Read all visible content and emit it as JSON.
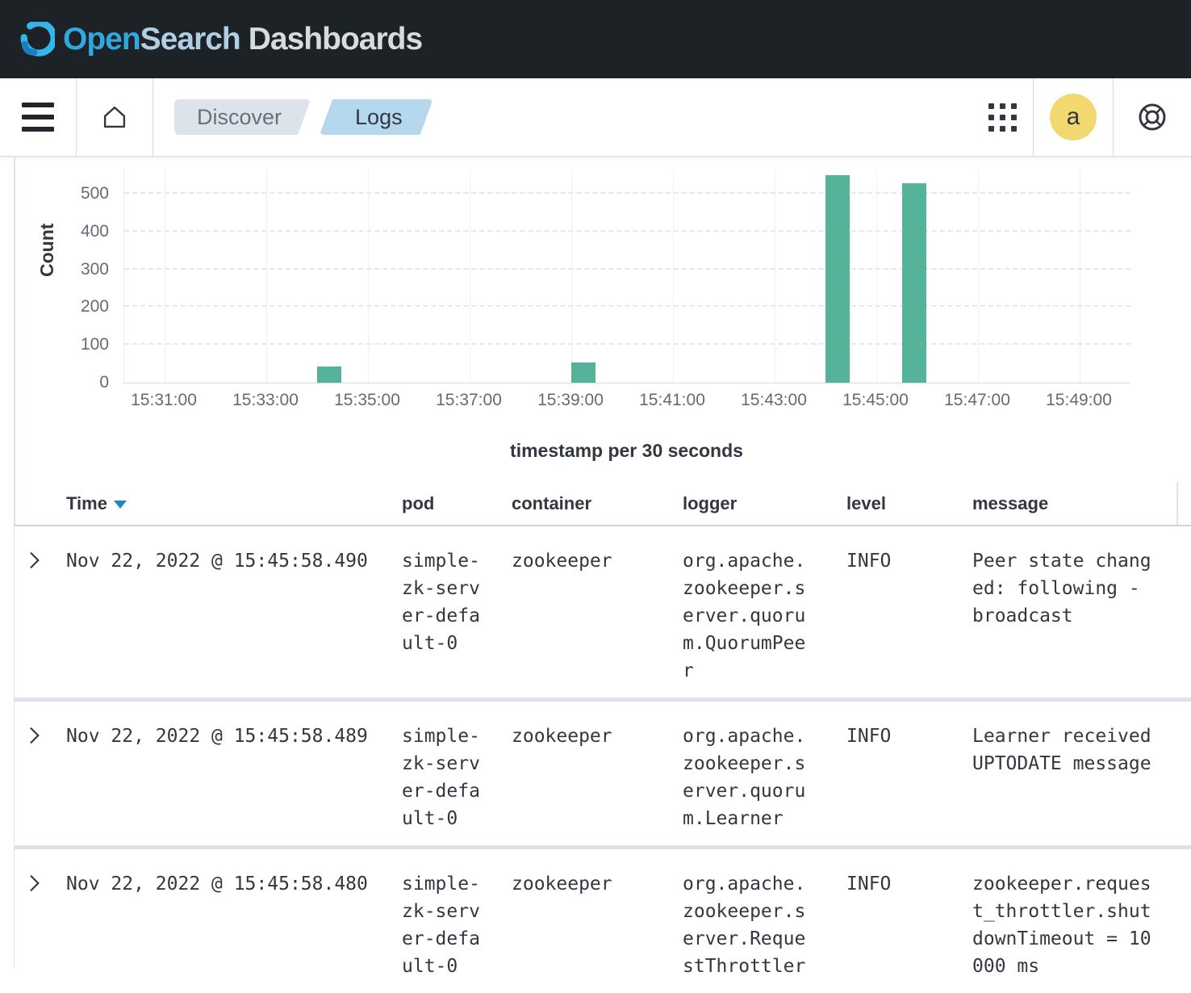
{
  "banner": {
    "logo_open": "Open",
    "logo_search": "Search",
    "logo_dashboards": "Dashboards"
  },
  "nav": {
    "breadcrumbs": [
      {
        "label": "Discover",
        "current": false
      },
      {
        "label": "Logs",
        "current": true
      }
    ],
    "avatar_initial": "a",
    "icons": {
      "menu": "menu-icon (hamburger ☰)",
      "home": "home-icon (house outline)",
      "apps": "apps-icon (3x3 dot grid)",
      "help": "help-icon (life ring)"
    }
  },
  "chart_data": {
    "type": "bar",
    "title": "",
    "xlabel": "timestamp per 30 seconds",
    "ylabel": "Count",
    "x_ticks": [
      "15:31:00",
      "15:33:00",
      "15:35:00",
      "15:37:00",
      "15:39:00",
      "15:41:00",
      "15:43:00",
      "15:45:00",
      "15:47:00",
      "15:49:00"
    ],
    "y_ticks": [
      0,
      100,
      200,
      300,
      400,
      500
    ],
    "ylim": [
      0,
      564
    ],
    "bucket_seconds": 30,
    "bars": [
      {
        "x": "15:34:00",
        "value": 43
      },
      {
        "x": "15:39:00",
        "value": 53
      },
      {
        "x": "15:44:00",
        "value": 549
      },
      {
        "x": "15:45:30",
        "value": 528
      }
    ],
    "bar_color": "#54B399",
    "grid": "horizontal dashed, vertical solid",
    "legend": "none"
  },
  "table": {
    "columns": [
      {
        "label": "Time",
        "sorted": "desc"
      },
      {
        "label": "pod"
      },
      {
        "label": "container"
      },
      {
        "label": "logger"
      },
      {
        "label": "level"
      },
      {
        "label": "message"
      }
    ],
    "rows": [
      {
        "time": "Nov 22, 2022 @ 15:45:58.490",
        "pod": "simple-zk-server-default-0",
        "container": "zookeeper",
        "logger": "org.apache.zookeeper.server.quorum.QuorumPeer",
        "level": "INFO",
        "message": "Peer state changed: following - broadcast"
      },
      {
        "time": "Nov 22, 2022 @ 15:45:58.489",
        "pod": "simple-zk-server-default-0",
        "container": "zookeeper",
        "logger": "org.apache.zookeeper.server.quorum.Learner",
        "level": "INFO",
        "message": "Learner received UPTODATE message"
      },
      {
        "time": "Nov 22, 2022 @ 15:45:58.480",
        "pod": "simple-zk-server-default-0",
        "container": "zookeeper",
        "logger": "org.apache.zookeeper.server.RequestThrottler",
        "level": "INFO",
        "message": "zookeeper.request_throttler.shutdownTimeout = 10000 ms"
      }
    ]
  },
  "colors": {
    "banner_bg": "#1D2227",
    "logo_open": "#2FA8E0",
    "logo_search": "#B0CFE3",
    "logo_dashboards": "#D8DADD",
    "bar": "#54B399",
    "breadcrumb_prev_bg": "#DDE3EA",
    "breadcrumb_prev_text": "#69707D",
    "breadcrumb_current_bg": "#B5D8EE",
    "breadcrumb_current_text": "#343741",
    "avatar_bg": "#F1D86F",
    "sort_arrow": "#1E86C5",
    "divider": "#D3DAE6",
    "text": "#343741",
    "tick_text": "#646A77"
  }
}
